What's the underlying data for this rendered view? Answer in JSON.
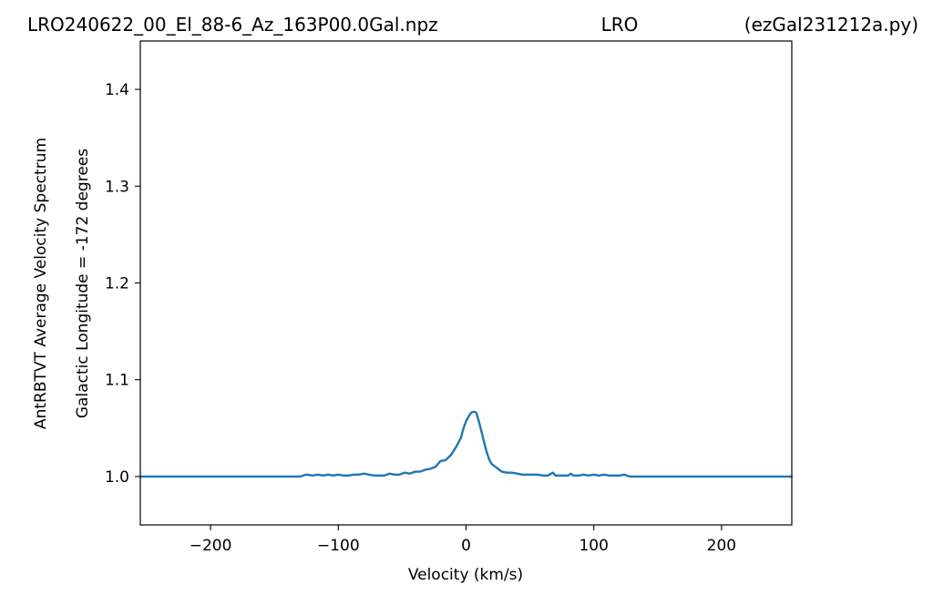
{
  "chart_data": {
    "type": "line",
    "title_left": "LRO240622_00_El_88-6_Az_163P00.0Gal.npz",
    "title_center": "LRO",
    "title_right": "(ezGal231212a.py)",
    "xlabel": "Velocity (km/s)",
    "ylabel_line1": "AntRBTVT Average Velocity Spectrum",
    "ylabel_line2": "Galactic Longitude = -172 degrees",
    "xlim": [
      -255,
      255
    ],
    "ylim": [
      0.95,
      1.45
    ],
    "xticks": [
      -200,
      -100,
      0,
      100,
      200
    ],
    "xtick_labels": [
      "−200",
      "−100",
      "0",
      "100",
      "200"
    ],
    "yticks": [
      1.0,
      1.1,
      1.2,
      1.3,
      1.4
    ],
    "ytick_labels": [
      "1.0",
      "1.1",
      "1.2",
      "1.3",
      "1.4"
    ],
    "grid": false,
    "series": [
      {
        "color": "#1f77b4",
        "x": [
          -255,
          -130,
          -125,
          -120,
          -116,
          -112,
          -108,
          -104,
          -100,
          -96,
          -92,
          -88,
          -84,
          -80,
          -76,
          -72,
          -68,
          -64,
          -60,
          -56,
          -52,
          -48,
          -44,
          -40,
          -36,
          -32,
          -28,
          -24,
          -20,
          -16,
          -12,
          -8,
          -4,
          -2,
          0,
          2,
          4,
          6,
          8,
          10,
          12,
          14,
          16,
          18,
          20,
          24,
          28,
          32,
          36,
          40,
          44,
          48,
          52,
          56,
          60,
          64,
          68,
          70,
          72,
          76,
          80,
          82,
          84,
          88,
          92,
          96,
          100,
          104,
          108,
          112,
          116,
          120,
          124,
          128,
          255
        ],
        "y": [
          1.0,
          1.0,
          1.002,
          1.001,
          1.002,
          1.001,
          1.002,
          1.001,
          1.002,
          1.001,
          1.001,
          1.002,
          1.002,
          1.003,
          1.002,
          1.001,
          1.001,
          1.001,
          1.003,
          1.002,
          1.002,
          1.004,
          1.003,
          1.005,
          1.005,
          1.007,
          1.008,
          1.01,
          1.016,
          1.017,
          1.022,
          1.03,
          1.04,
          1.05,
          1.057,
          1.062,
          1.066,
          1.067,
          1.066,
          1.057,
          1.047,
          1.036,
          1.026,
          1.018,
          1.013,
          1.009,
          1.005,
          1.004,
          1.004,
          1.003,
          1.002,
          1.002,
          1.002,
          1.002,
          1.001,
          1.001,
          1.004,
          1.001,
          1.001,
          1.001,
          1.001,
          1.003,
          1.001,
          1.001,
          1.002,
          1.001,
          1.002,
          1.001,
          1.002,
          1.001,
          1.001,
          1.001,
          1.002,
          1.0,
          1.0
        ]
      }
    ]
  }
}
